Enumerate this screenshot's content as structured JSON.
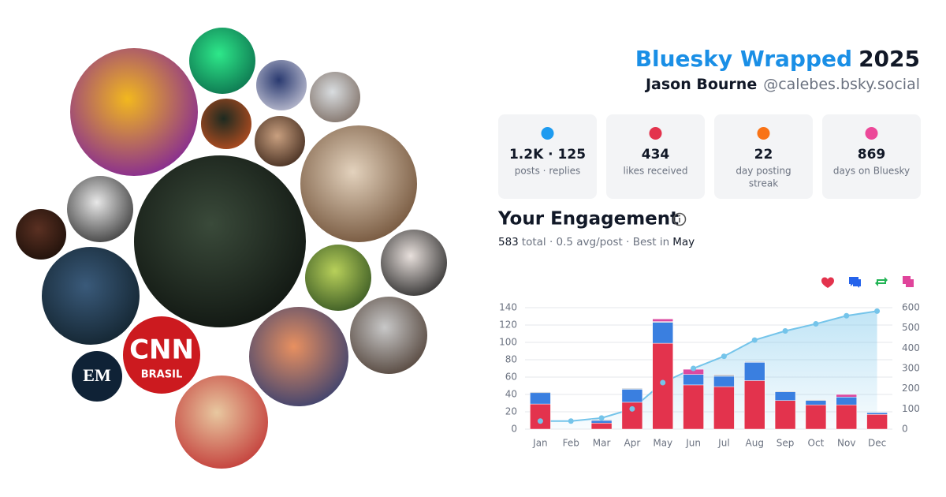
{
  "header": {
    "title": "Bluesky Wrapped",
    "year": "2025",
    "name": "Jason Bourne",
    "handle": "@calebes.bsky.social"
  },
  "collage": {
    "labels": [
      "CNN",
      "BRASIL",
      "EM"
    ]
  },
  "stats": [
    {
      "value": "1.2K · 125",
      "label": [
        "posts · replies"
      ]
    },
    {
      "value": "434",
      "label": [
        "likes received"
      ]
    },
    {
      "value": "22",
      "label": [
        "day posting",
        "streak"
      ]
    },
    {
      "value": "869",
      "label": [
        "days on Bluesky"
      ]
    }
  ],
  "engagement": {
    "title": "Your Engagement",
    "summary": [
      "583",
      "total · 0.5 avg/post · Best in",
      "May"
    ]
  },
  "chart_data": {
    "type": "bar",
    "stacked": true,
    "categories": [
      "Jan",
      "Feb",
      "Mar",
      "Apr",
      "May",
      "Jun",
      "Jul",
      "Aug",
      "Sep",
      "Oct",
      "Nov",
      "Dec"
    ],
    "series": [
      {
        "color": "#e3334d",
        "legend_color": "#e3334d",
        "values": [
          29,
          0,
          7,
          31,
          99,
          51,
          49,
          56,
          33,
          28,
          28,
          17
        ]
      },
      {
        "color": "#3a7fe0",
        "legend_color": "#2563eb",
        "values": [
          13,
          0,
          3,
          15,
          24,
          12,
          12,
          21,
          10,
          5,
          9,
          2
        ]
      },
      {
        "color": "#b4bcc6",
        "legend_color": "#22b455",
        "values": [
          1,
          0,
          1,
          1,
          1,
          0,
          2,
          1,
          1,
          1,
          0,
          0
        ]
      },
      {
        "color": "#dc4aa0",
        "legend_color": "#e0449b",
        "values": [
          0,
          0,
          0,
          0,
          3,
          6,
          0,
          0,
          0,
          0,
          3,
          0
        ]
      },
      {
        "type": "line",
        "axis": "y2",
        "color": "#74c4ea",
        "values": [
          40,
          40,
          55,
          100,
          230,
          300,
          360,
          440,
          485,
          520,
          560,
          583
        ]
      }
    ],
    "ylim": [
      0,
      140
    ],
    "yticks": [
      0,
      20,
      40,
      60,
      80,
      100,
      120,
      140
    ],
    "y2lim": [
      0,
      600
    ],
    "y2ticks": [
      0,
      100,
      200,
      300,
      400,
      500,
      600
    ],
    "grid": true
  }
}
